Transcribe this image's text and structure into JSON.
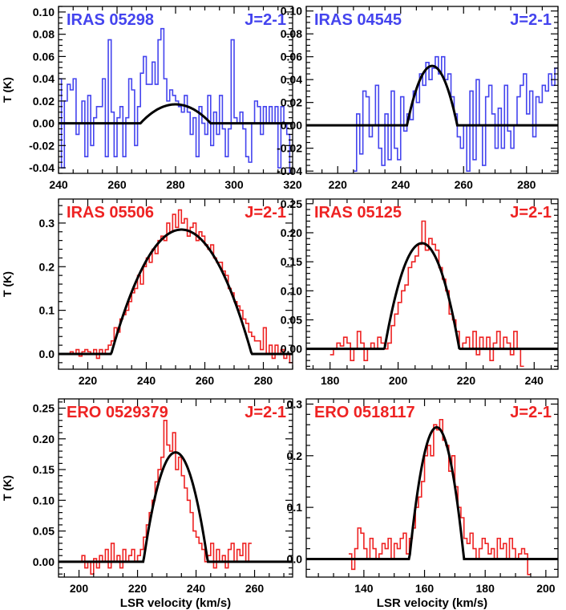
{
  "figure": {
    "xlabel": "LSR velocity (km/s)",
    "ylabel": "T (K)"
  },
  "chart_data": [
    {
      "type": "line",
      "name": "IRAS 05298",
      "transition": "J=2-1",
      "color": "#4444ee",
      "xlim": [
        240,
        320
      ],
      "ylim": [
        -0.045,
        0.105
      ],
      "xticks": [
        "240",
        "260",
        "280",
        "300",
        "320"
      ],
      "yticks": [
        "-0.04",
        "-0.02",
        "0.00",
        "0.02",
        "0.04",
        "0.06",
        "0.08",
        "0.10"
      ],
      "ylabel": "T (K)",
      "xlabel": "",
      "spectrum": {
        "x": [
          240,
          241,
          242,
          243,
          244,
          245,
          246,
          247,
          248,
          249,
          250,
          251,
          252,
          253,
          254,
          255,
          256,
          257,
          258,
          259,
          260,
          261,
          262,
          263,
          264,
          265,
          266,
          267,
          268,
          269,
          270,
          271,
          272,
          273,
          274,
          275,
          276,
          277,
          278,
          279,
          280,
          281,
          282,
          283,
          284,
          285,
          286,
          287,
          288,
          289,
          290,
          291,
          292,
          293,
          294,
          295,
          296,
          297,
          298,
          299,
          300,
          301,
          302,
          303,
          304,
          305,
          306,
          307,
          308,
          309,
          310,
          311,
          312,
          313,
          314,
          315,
          316,
          317,
          318,
          319
        ],
        "y": [
          0.04,
          -0.04,
          0.02,
          0.035,
          0.03,
          0.04,
          -0.01,
          0.0,
          0.02,
          -0.03,
          0.025,
          -0.02,
          0.005,
          0.015,
          0.015,
          0.04,
          -0.03,
          0.075,
          0.01,
          -0.03,
          0.005,
          0.015,
          -0.03,
          0.005,
          0.04,
          0.03,
          -0.02,
          0.015,
          0.045,
          0.06,
          0.035,
          0.035,
          0.055,
          0.035,
          0.075,
          0.085,
          0.04,
          0.02,
          0.03,
          0.025,
          0.02,
          0.015,
          0.01,
          0.025,
          0.01,
          -0.01,
          0.005,
          -0.03,
          0.015,
          0.0,
          -0.01,
          0.025,
          -0.02,
          0.01,
          -0.01,
          0.025,
          -0.005,
          -0.03,
          -0.005,
          0.075,
          0.005,
          0.0,
          0.01,
          -0.005,
          -0.03,
          -0.035,
          0.0,
          0.02,
          0.015,
          -0.01,
          0.015,
          0.0,
          0.015,
          0.0,
          0.015,
          -0.04,
          0.015,
          0.0,
          -0.01,
          -0.045
        ]
      },
      "fit": {
        "center": 280,
        "halfwidth": 12,
        "peak": 0.017
      }
    },
    {
      "type": "line",
      "name": "IRAS 04545",
      "transition": "J=2-1",
      "color": "#4444ee",
      "xlim": [
        210,
        290
      ],
      "ylim": [
        -0.042,
        0.104
      ],
      "xticks": [
        "220",
        "240",
        "260",
        "280"
      ],
      "yticks": [
        "-0.04",
        "-0.02",
        "0.00",
        "0.02",
        "0.04",
        "0.06",
        "0.08",
        "0.10"
      ],
      "ylabel": "",
      "xlabel": "",
      "spectrum": {
        "x": [
          225,
          226,
          227,
          228,
          229,
          230,
          231,
          232,
          233,
          234,
          235,
          236,
          237,
          238,
          239,
          240,
          241,
          242,
          243,
          244,
          245,
          246,
          247,
          248,
          249,
          250,
          251,
          252,
          253,
          254,
          255,
          256,
          257,
          258,
          259,
          260,
          261,
          262,
          263,
          264,
          265,
          266,
          267,
          268,
          269,
          270,
          271,
          272,
          273,
          274,
          275,
          276,
          277,
          278,
          279,
          280,
          281,
          282,
          283,
          284,
          285,
          286,
          287,
          288,
          289
        ],
        "y": [
          -0.04,
          0.01,
          -0.025,
          0.03,
          0.025,
          -0.01,
          0.0,
          0.035,
          -0.02,
          -0.035,
          0.01,
          -0.03,
          0.03,
          -0.02,
          -0.03,
          0.025,
          -0.005,
          0.01,
          0.005,
          0.03,
          0.02,
          0.045,
          0.035,
          0.055,
          0.04,
          0.05,
          0.06,
          0.045,
          0.06,
          0.04,
          0.045,
          0.025,
          0.01,
          -0.01,
          -0.02,
          0.0,
          -0.04,
          0.03,
          -0.03,
          0.04,
          0.0,
          -0.035,
          0.025,
          0.035,
          0.01,
          -0.02,
          0.015,
          -0.02,
          0.035,
          -0.005,
          -0.02,
          0.0,
          0.025,
          0.035,
          0.045,
          0.01,
          0.03,
          -0.01,
          0.025,
          0.02,
          0.035,
          0.03,
          0.045,
          0.035,
          0.05
        ]
      },
      "fit": {
        "center": 250,
        "halfwidth": 8,
        "peak": 0.052
      }
    },
    {
      "type": "line",
      "name": "IRAS 05506",
      "transition": "J=2-1",
      "color": "#ee2222",
      "xlim": [
        210,
        290
      ],
      "ylim": [
        -0.035,
        0.355
      ],
      "xticks": [
        "220",
        "240",
        "260",
        "280"
      ],
      "yticks": [
        "0.0",
        "0.1",
        "0.2",
        "0.3"
      ],
      "ylabel": "T (K)",
      "xlabel": "",
      "spectrum": {
        "x": [
          213,
          214,
          215,
          216,
          217,
          218,
          219,
          220,
          221,
          222,
          223,
          224,
          225,
          226,
          227,
          228,
          229,
          230,
          231,
          232,
          233,
          234,
          235,
          236,
          237,
          238,
          239,
          240,
          241,
          242,
          243,
          244,
          245,
          246,
          247,
          248,
          249,
          250,
          251,
          252,
          253,
          254,
          255,
          256,
          257,
          258,
          259,
          260,
          261,
          262,
          263,
          264,
          265,
          266,
          267,
          268,
          269,
          270,
          271,
          272,
          273,
          274,
          275,
          276,
          277,
          278,
          279,
          280,
          281,
          282,
          283,
          284,
          285,
          286,
          287,
          288,
          289
        ],
        "y": [
          0.0,
          0.005,
          0.0,
          0.01,
          -0.005,
          0.005,
          0.01,
          0.005,
          0.0,
          0.01,
          -0.01,
          0.01,
          0.0,
          0.01,
          0.02,
          0.03,
          0.06,
          0.05,
          0.08,
          0.09,
          0.1,
          0.12,
          0.14,
          0.15,
          0.18,
          0.16,
          0.2,
          0.22,
          0.21,
          0.24,
          0.23,
          0.26,
          0.27,
          0.26,
          0.3,
          0.28,
          0.32,
          0.29,
          0.33,
          0.3,
          0.31,
          0.27,
          0.29,
          0.3,
          0.26,
          0.28,
          0.27,
          0.25,
          0.24,
          0.25,
          0.22,
          0.21,
          0.21,
          0.19,
          0.18,
          0.15,
          0.14,
          0.12,
          0.11,
          0.1,
          0.08,
          0.07,
          0.05,
          0.04,
          0.03,
          0.03,
          0.01,
          0.06,
          0.0,
          0.02,
          -0.01,
          0.02,
          0.0,
          0.01,
          -0.01,
          0.0,
          -0.02
        ]
      },
      "fit": {
        "center": 252,
        "halfwidth": 24,
        "peak": 0.285
      }
    },
    {
      "type": "line",
      "name": "IRAS 05125",
      "transition": "J=2-1",
      "color": "#ee2222",
      "xlim": [
        173,
        247
      ],
      "ylim": [
        -0.035,
        0.258
      ],
      "xticks": [
        "180",
        "200",
        "220",
        "240"
      ],
      "yticks": [
        "0.00",
        "0.05",
        "0.10",
        "0.15",
        "0.20",
        "0.25"
      ],
      "ylabel": "",
      "xlabel": "",
      "spectrum": {
        "x": [
          180,
          181,
          182,
          183,
          184,
          185,
          186,
          187,
          188,
          189,
          190,
          191,
          192,
          193,
          194,
          195,
          196,
          197,
          198,
          199,
          200,
          201,
          202,
          203,
          204,
          205,
          206,
          207,
          208,
          209,
          210,
          211,
          212,
          213,
          214,
          215,
          216,
          217,
          218,
          219,
          220,
          221,
          222,
          223,
          224,
          225,
          226,
          227,
          228,
          229,
          230,
          231,
          232,
          233,
          234,
          235,
          236
        ],
        "y": [
          -0.01,
          0.0,
          0.01,
          0.005,
          0.02,
          0.01,
          -0.02,
          0.0,
          0.03,
          0.01,
          -0.02,
          0.0,
          0.01,
          0.0,
          0.02,
          0.01,
          0.0,
          0.01,
          0.04,
          0.06,
          0.08,
          0.1,
          0.11,
          0.14,
          0.15,
          0.16,
          0.18,
          0.22,
          0.17,
          0.19,
          0.18,
          0.17,
          0.14,
          0.12,
          0.1,
          0.06,
          0.05,
          0.03,
          0.0,
          0.01,
          0.02,
          0.0,
          0.03,
          -0.01,
          0.02,
          0.0,
          0.02,
          -0.02,
          0.01,
          0.03,
          0.0,
          0.02,
          0.01,
          -0.01,
          0.03,
          0.0,
          -0.03
        ]
      },
      "fit": {
        "center": 207,
        "halfwidth": 11,
        "peak": 0.182
      }
    },
    {
      "type": "line",
      "name": "ERO 0529379",
      "transition": "J=2-1",
      "color": "#ee2222",
      "xlim": [
        193,
        273
      ],
      "ylim": [
        -0.025,
        0.265
      ],
      "xticks": [
        "200",
        "220",
        "240",
        "260"
      ],
      "yticks": [
        "0.00",
        "0.05",
        "0.10",
        "0.15",
        "0.20",
        "0.25"
      ],
      "ylabel": "T (K)",
      "xlabel": "LSR velocity (km/s)",
      "spectrum": {
        "x": [
          200,
          201,
          202,
          203,
          204,
          205,
          206,
          207,
          208,
          209,
          210,
          211,
          212,
          213,
          214,
          215,
          216,
          217,
          218,
          219,
          220,
          221,
          222,
          223,
          224,
          225,
          226,
          227,
          228,
          229,
          230,
          231,
          232,
          233,
          234,
          235,
          236,
          237,
          238,
          239,
          240,
          241,
          242,
          243,
          244,
          245,
          246,
          247,
          248,
          249,
          250,
          251,
          252,
          253,
          254,
          255,
          256,
          257,
          258
        ],
        "y": [
          0.0,
          0.01,
          -0.01,
          0.0,
          -0.02,
          0.005,
          -0.01,
          0.01,
          0.0,
          0.02,
          -0.01,
          0.03,
          0.0,
          0.01,
          -0.01,
          0.02,
          0.0,
          0.01,
          0.02,
          0.0,
          0.01,
          0.02,
          0.04,
          0.06,
          0.08,
          0.1,
          0.13,
          0.15,
          0.17,
          0.23,
          0.19,
          0.18,
          0.21,
          0.15,
          0.17,
          0.14,
          0.12,
          0.1,
          0.08,
          0.05,
          0.04,
          0.03,
          0.02,
          0.0,
          0.01,
          0.03,
          -0.01,
          0.02,
          0.0,
          0.01,
          -0.01,
          0.02,
          0.03,
          0.0,
          0.02,
          0.01,
          0.03,
          0.0,
          0.03
        ]
      },
      "fit": {
        "center": 233,
        "halfwidth": 11,
        "peak": 0.178
      }
    },
    {
      "type": "line",
      "name": "ERO 0518117",
      "transition": "J=2-1",
      "color": "#ee2222",
      "xlim": [
        121,
        204
      ],
      "ylim": [
        -0.035,
        0.31
      ],
      "xticks": [
        "140",
        "160",
        "180",
        "200"
      ],
      "yticks": [
        "0.0",
        "0.1",
        "0.2",
        "0.3"
      ],
      "ylabel": "",
      "xlabel": "LSR velocity (km/s)",
      "spectrum": {
        "x": [
          135,
          136,
          137,
          138,
          139,
          140,
          141,
          142,
          143,
          144,
          145,
          146,
          147,
          148,
          149,
          150,
          151,
          152,
          153,
          154,
          155,
          156,
          157,
          158,
          159,
          160,
          161,
          162,
          163,
          164,
          165,
          166,
          167,
          168,
          169,
          170,
          171,
          172,
          173,
          174,
          175,
          176,
          177,
          178,
          179,
          180,
          181,
          182,
          183,
          184,
          185,
          186,
          187,
          188,
          189,
          190,
          191,
          192,
          193,
          194
        ],
        "y": [
          0.01,
          -0.02,
          0.02,
          0.06,
          0.05,
          0.02,
          0.0,
          0.04,
          0.02,
          0.0,
          0.01,
          0.03,
          0.02,
          0.04,
          0.0,
          0.03,
          0.02,
          0.04,
          0.05,
          0.01,
          0.04,
          0.06,
          0.1,
          0.12,
          0.15,
          0.2,
          0.22,
          0.2,
          0.26,
          0.25,
          0.27,
          0.23,
          0.22,
          0.17,
          0.2,
          0.14,
          0.1,
          0.08,
          0.04,
          0.03,
          0.05,
          0.02,
          0.0,
          0.02,
          0.04,
          0.03,
          0.01,
          0.02,
          0.0,
          0.04,
          0.02,
          0.03,
          0.0,
          0.04,
          0.02,
          0.0,
          0.01,
          0.02,
          0.01,
          -0.03
        ]
      },
      "fit": {
        "center": 164,
        "halfwidth": 9,
        "peak": 0.255
      }
    }
  ]
}
